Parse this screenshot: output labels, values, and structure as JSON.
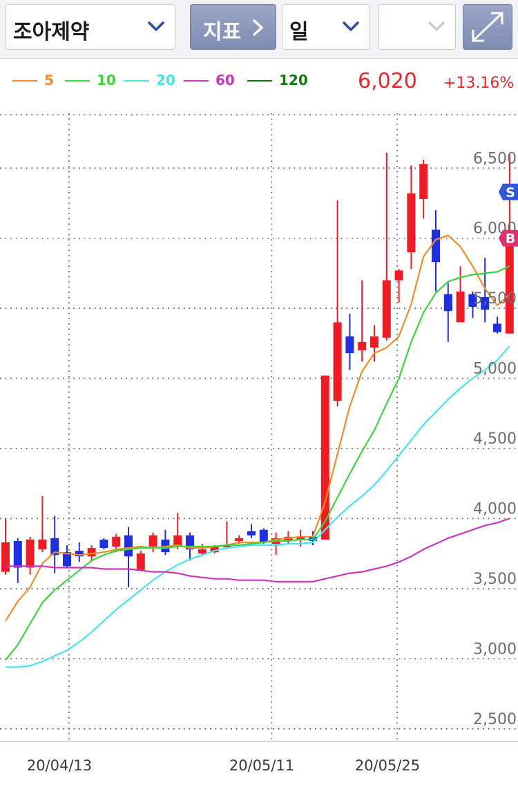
{
  "toolbar": {
    "stock_name": "조아제약",
    "indicator_label": "지표",
    "period_label": "일",
    "empty_select_value": ""
  },
  "legend": [
    {
      "label": "5",
      "color": "#f28c28"
    },
    {
      "label": "10",
      "color": "#3ad63a"
    },
    {
      "label": "20",
      "color": "#45e4ec"
    },
    {
      "label": "60",
      "color": "#cc33c0"
    },
    {
      "label": "120",
      "color": "#0f7a0f"
    }
  ],
  "quote": {
    "price": "6,020",
    "change_pct": "+13.16%"
  },
  "colors": {
    "up": "#ee1c24",
    "down": "#1f2fe0",
    "grid": "#4a4a4a",
    "sell_badge": "#2f57d8",
    "buy_badge": "#e0316f"
  },
  "icons": {
    "stock_select": "chevron-down-icon",
    "indicator": "chevron-right-icon",
    "period_select": "chevron-down-icon",
    "expand": "diagonal-arrow-icon"
  },
  "chart_data": {
    "type": "candlestick",
    "y_ticks": [
      "2,500",
      "3,000",
      "3,500",
      "4,000",
      "4,500",
      "5,000",
      "5,500",
      "6,000",
      "6,500"
    ],
    "x_ticks": [
      "20/04/13",
      "20/05/11",
      "20/05/25"
    ],
    "ylim": [
      2420,
      6960
    ],
    "badges": [
      {
        "label": "S",
        "value": 6330
      },
      {
        "label": "B",
        "value": 6000
      }
    ],
    "candles": [
      {
        "o": 3620,
        "c": 3830,
        "h": 4000,
        "l": 3600,
        "dir": "up"
      },
      {
        "o": 3840,
        "c": 3650,
        "h": 3860,
        "l": 3540,
        "dir": "down"
      },
      {
        "o": 3650,
        "c": 3850,
        "h": 3870,
        "l": 3600,
        "dir": "up"
      },
      {
        "o": 3780,
        "c": 3850,
        "h": 4160,
        "l": 3760,
        "dir": "up"
      },
      {
        "o": 3860,
        "c": 3740,
        "h": 4020,
        "l": 3610,
        "dir": "down"
      },
      {
        "o": 3760,
        "c": 3660,
        "h": 3810,
        "l": 3650,
        "dir": "down"
      },
      {
        "o": 3770,
        "c": 3730,
        "h": 3830,
        "l": 3690,
        "dir": "down"
      },
      {
        "o": 3730,
        "c": 3790,
        "h": 3810,
        "l": 3690,
        "dir": "up"
      },
      {
        "o": 3850,
        "c": 3790,
        "h": 3860,
        "l": 3780,
        "dir": "down"
      },
      {
        "o": 3800,
        "c": 3870,
        "h": 3890,
        "l": 3760,
        "dir": "up"
      },
      {
        "o": 3880,
        "c": 3730,
        "h": 3940,
        "l": 3510,
        "dir": "down"
      },
      {
        "o": 3630,
        "c": 3750,
        "h": 3770,
        "l": 3630,
        "dir": "up"
      },
      {
        "o": 3800,
        "c": 3880,
        "h": 3900,
        "l": 3760,
        "dir": "up"
      },
      {
        "o": 3850,
        "c": 3760,
        "h": 3920,
        "l": 3740,
        "dir": "down"
      },
      {
        "o": 3800,
        "c": 3880,
        "h": 4040,
        "l": 3780,
        "dir": "up"
      },
      {
        "o": 3880,
        "c": 3780,
        "h": 3900,
        "l": 3700,
        "dir": "down"
      },
      {
        "o": 3750,
        "c": 3780,
        "h": 3820,
        "l": 3740,
        "dir": "up"
      },
      {
        "o": 3760,
        "c": 3800,
        "h": 3810,
        "l": 3750,
        "dir": "up"
      },
      {
        "o": 3800,
        "c": 3810,
        "h": 3980,
        "l": 3790,
        "dir": "up"
      },
      {
        "o": 3840,
        "c": 3860,
        "h": 3880,
        "l": 3820,
        "dir": "up"
      },
      {
        "o": 3910,
        "c": 3880,
        "h": 3960,
        "l": 3860,
        "dir": "down"
      },
      {
        "o": 3920,
        "c": 3830,
        "h": 3930,
        "l": 3820,
        "dir": "down"
      },
      {
        "o": 3820,
        "c": 3860,
        "h": 3900,
        "l": 3740,
        "dir": "up"
      },
      {
        "o": 3840,
        "c": 3870,
        "h": 3910,
        "l": 3820,
        "dir": "up"
      },
      {
        "o": 3850,
        "c": 3870,
        "h": 3920,
        "l": 3800,
        "dir": "up"
      },
      {
        "o": 3870,
        "c": 3840,
        "h": 3910,
        "l": 3810,
        "dir": "down"
      },
      {
        "o": 3850,
        "c": 5020,
        "h": 5020,
        "l": 3850,
        "dir": "up"
      },
      {
        "o": 4840,
        "c": 5400,
        "h": 6270,
        "l": 4800,
        "dir": "up"
      },
      {
        "o": 5300,
        "c": 5180,
        "h": 5460,
        "l": 5060,
        "dir": "down"
      },
      {
        "o": 5200,
        "c": 5260,
        "h": 5700,
        "l": 5120,
        "dir": "up"
      },
      {
        "o": 5220,
        "c": 5300,
        "h": 5380,
        "l": 5120,
        "dir": "up"
      },
      {
        "o": 5290,
        "c": 5700,
        "h": 6610,
        "l": 5270,
        "dir": "up"
      },
      {
        "o": 5700,
        "c": 5770,
        "h": 5780,
        "l": 5540,
        "dir": "up"
      },
      {
        "o": 5900,
        "c": 6320,
        "h": 6520,
        "l": 5780,
        "dir": "up"
      },
      {
        "o": 6280,
        "c": 6530,
        "h": 6560,
        "l": 6140,
        "dir": "up"
      },
      {
        "o": 6060,
        "c": 5830,
        "h": 6200,
        "l": 5620,
        "dir": "down"
      },
      {
        "o": 5600,
        "c": 5480,
        "h": 5680,
        "l": 5260,
        "dir": "down"
      },
      {
        "o": 5400,
        "c": 5620,
        "h": 5800,
        "l": 5400,
        "dir": "up"
      },
      {
        "o": 5600,
        "c": 5510,
        "h": 5620,
        "l": 5430,
        "dir": "down"
      },
      {
        "o": 5580,
        "c": 5490,
        "h": 5860,
        "l": 5400,
        "dir": "down"
      },
      {
        "o": 5390,
        "c": 5330,
        "h": 5440,
        "l": 5320,
        "dir": "down"
      },
      {
        "o": 5320,
        "c": 6020,
        "h": 6600,
        "l": 5320,
        "dir": "up"
      }
    ],
    "series": [
      {
        "name": "5",
        "color": "#f28c28",
        "values": [
          3270,
          3410,
          3510,
          3680,
          3760,
          3750,
          3740,
          3750,
          3760,
          3780,
          3790,
          3800,
          3790,
          3800,
          3810,
          3790,
          3790,
          3800,
          3810,
          3830,
          3830,
          3830,
          3850,
          3860,
          3870,
          3870,
          4120,
          4460,
          4800,
          5050,
          5180,
          5220,
          5300,
          5530,
          5870,
          5990,
          6020,
          5940,
          5800,
          5640,
          5520,
          5600
        ]
      },
      {
        "name": "10",
        "color": "#3ad63a",
        "values": [
          2990,
          3100,
          3250,
          3400,
          3490,
          3560,
          3630,
          3700,
          3740,
          3770,
          3780,
          3790,
          3790,
          3790,
          3800,
          3800,
          3800,
          3800,
          3810,
          3810,
          3820,
          3830,
          3840,
          3840,
          3850,
          3850,
          3980,
          4150,
          4320,
          4480,
          4630,
          4820,
          5000,
          5260,
          5470,
          5610,
          5690,
          5720,
          5740,
          5750,
          5760,
          5800
        ]
      },
      {
        "name": "20",
        "color": "#45e4ec",
        "values": [
          2940,
          2940,
          2950,
          2980,
          3020,
          3060,
          3120,
          3190,
          3270,
          3350,
          3420,
          3490,
          3560,
          3620,
          3670,
          3710,
          3740,
          3770,
          3790,
          3800,
          3810,
          3810,
          3810,
          3820,
          3820,
          3830,
          3920,
          4010,
          4090,
          4160,
          4240,
          4340,
          4450,
          4560,
          4670,
          4760,
          4850,
          4930,
          5000,
          5060,
          5130,
          5230
        ]
      },
      {
        "name": "60",
        "color": "#cc33c0",
        "values": [
          3660,
          3660,
          3660,
          3660,
          3650,
          3650,
          3650,
          3650,
          3640,
          3640,
          3640,
          3630,
          3620,
          3620,
          3610,
          3590,
          3580,
          3570,
          3570,
          3560,
          3560,
          3560,
          3550,
          3550,
          3550,
          3550,
          3570,
          3590,
          3610,
          3620,
          3640,
          3660,
          3690,
          3730,
          3780,
          3820,
          3860,
          3890,
          3920,
          3950,
          3970,
          4000
        ]
      }
    ]
  }
}
